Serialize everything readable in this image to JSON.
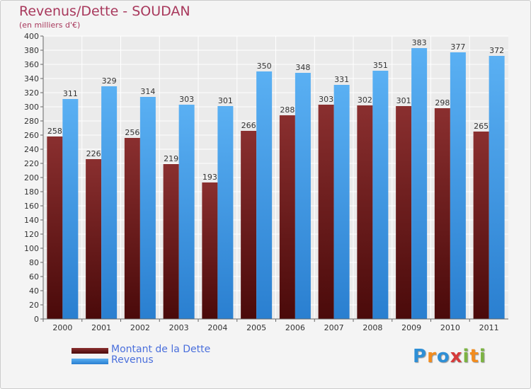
{
  "chart_data": {
    "type": "bar",
    "title": "Revenus/Dette - SOUDAN",
    "subtitle": "(en milliers d'€)",
    "xlabel": "",
    "ylabel": "",
    "ylim": [
      0,
      400
    ],
    "y_ticks": [
      0,
      20,
      40,
      60,
      80,
      100,
      120,
      140,
      160,
      180,
      200,
      220,
      240,
      260,
      280,
      300,
      320,
      340,
      360,
      380,
      400
    ],
    "grid": true,
    "legend_position": "bottom-left",
    "categories": [
      "2000",
      "2001",
      "2002",
      "2003",
      "2004",
      "2005",
      "2006",
      "2007",
      "2008",
      "2009",
      "2010",
      "2011"
    ],
    "series": [
      {
        "name": "Montant de la Dette",
        "color": "#7a2323",
        "values": [
          258,
          226,
          256,
          219,
          193,
          266,
          288,
          303,
          302,
          301,
          298,
          265
        ]
      },
      {
        "name": "Revenus",
        "color": "#3d9be9",
        "values": [
          311,
          329,
          314,
          303,
          301,
          350,
          348,
          331,
          351,
          383,
          377,
          372
        ]
      }
    ]
  },
  "logo": {
    "letters": [
      "P",
      "r",
      "o",
      "x",
      "i",
      "t",
      "i"
    ],
    "colors": [
      "#2e8fd6",
      "#f28c1e",
      "#2e8fd6",
      "#d63a3a",
      "#7cb342",
      "#f28c1e",
      "#7cb342"
    ]
  }
}
